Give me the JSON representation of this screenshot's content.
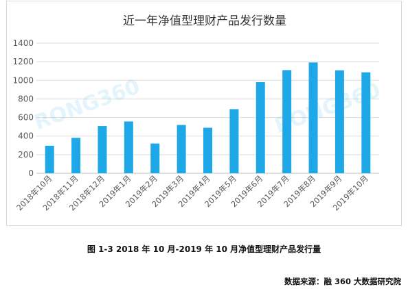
{
  "chart_data": {
    "type": "bar",
    "title": "近一年净值型理财产品发行数量",
    "categories": [
      "2018年10月",
      "2018年11月",
      "2018年12月",
      "2019年1月",
      "2019年2月",
      "2019年3月",
      "2019年4月",
      "2019年5月",
      "2019年6月",
      "2019年7月",
      "2019年8月",
      "2019年9月",
      "2019年10月"
    ],
    "values": [
      296,
      381,
      508,
      557,
      320,
      520,
      490,
      690,
      980,
      1110,
      1192,
      1108,
      1086
    ],
    "ylim": [
      0,
      1400
    ],
    "yticks": [
      0,
      200,
      400,
      600,
      800,
      1000,
      1200,
      1400
    ],
    "grid": true,
    "bar_color": "#1fa8e8",
    "watermark": "RONG360"
  },
  "caption": "图 1-3 2018 年 10 月-2019 年 10 月净值型理财产品发行量",
  "source": "数据来源：融 360 大数据研究院"
}
